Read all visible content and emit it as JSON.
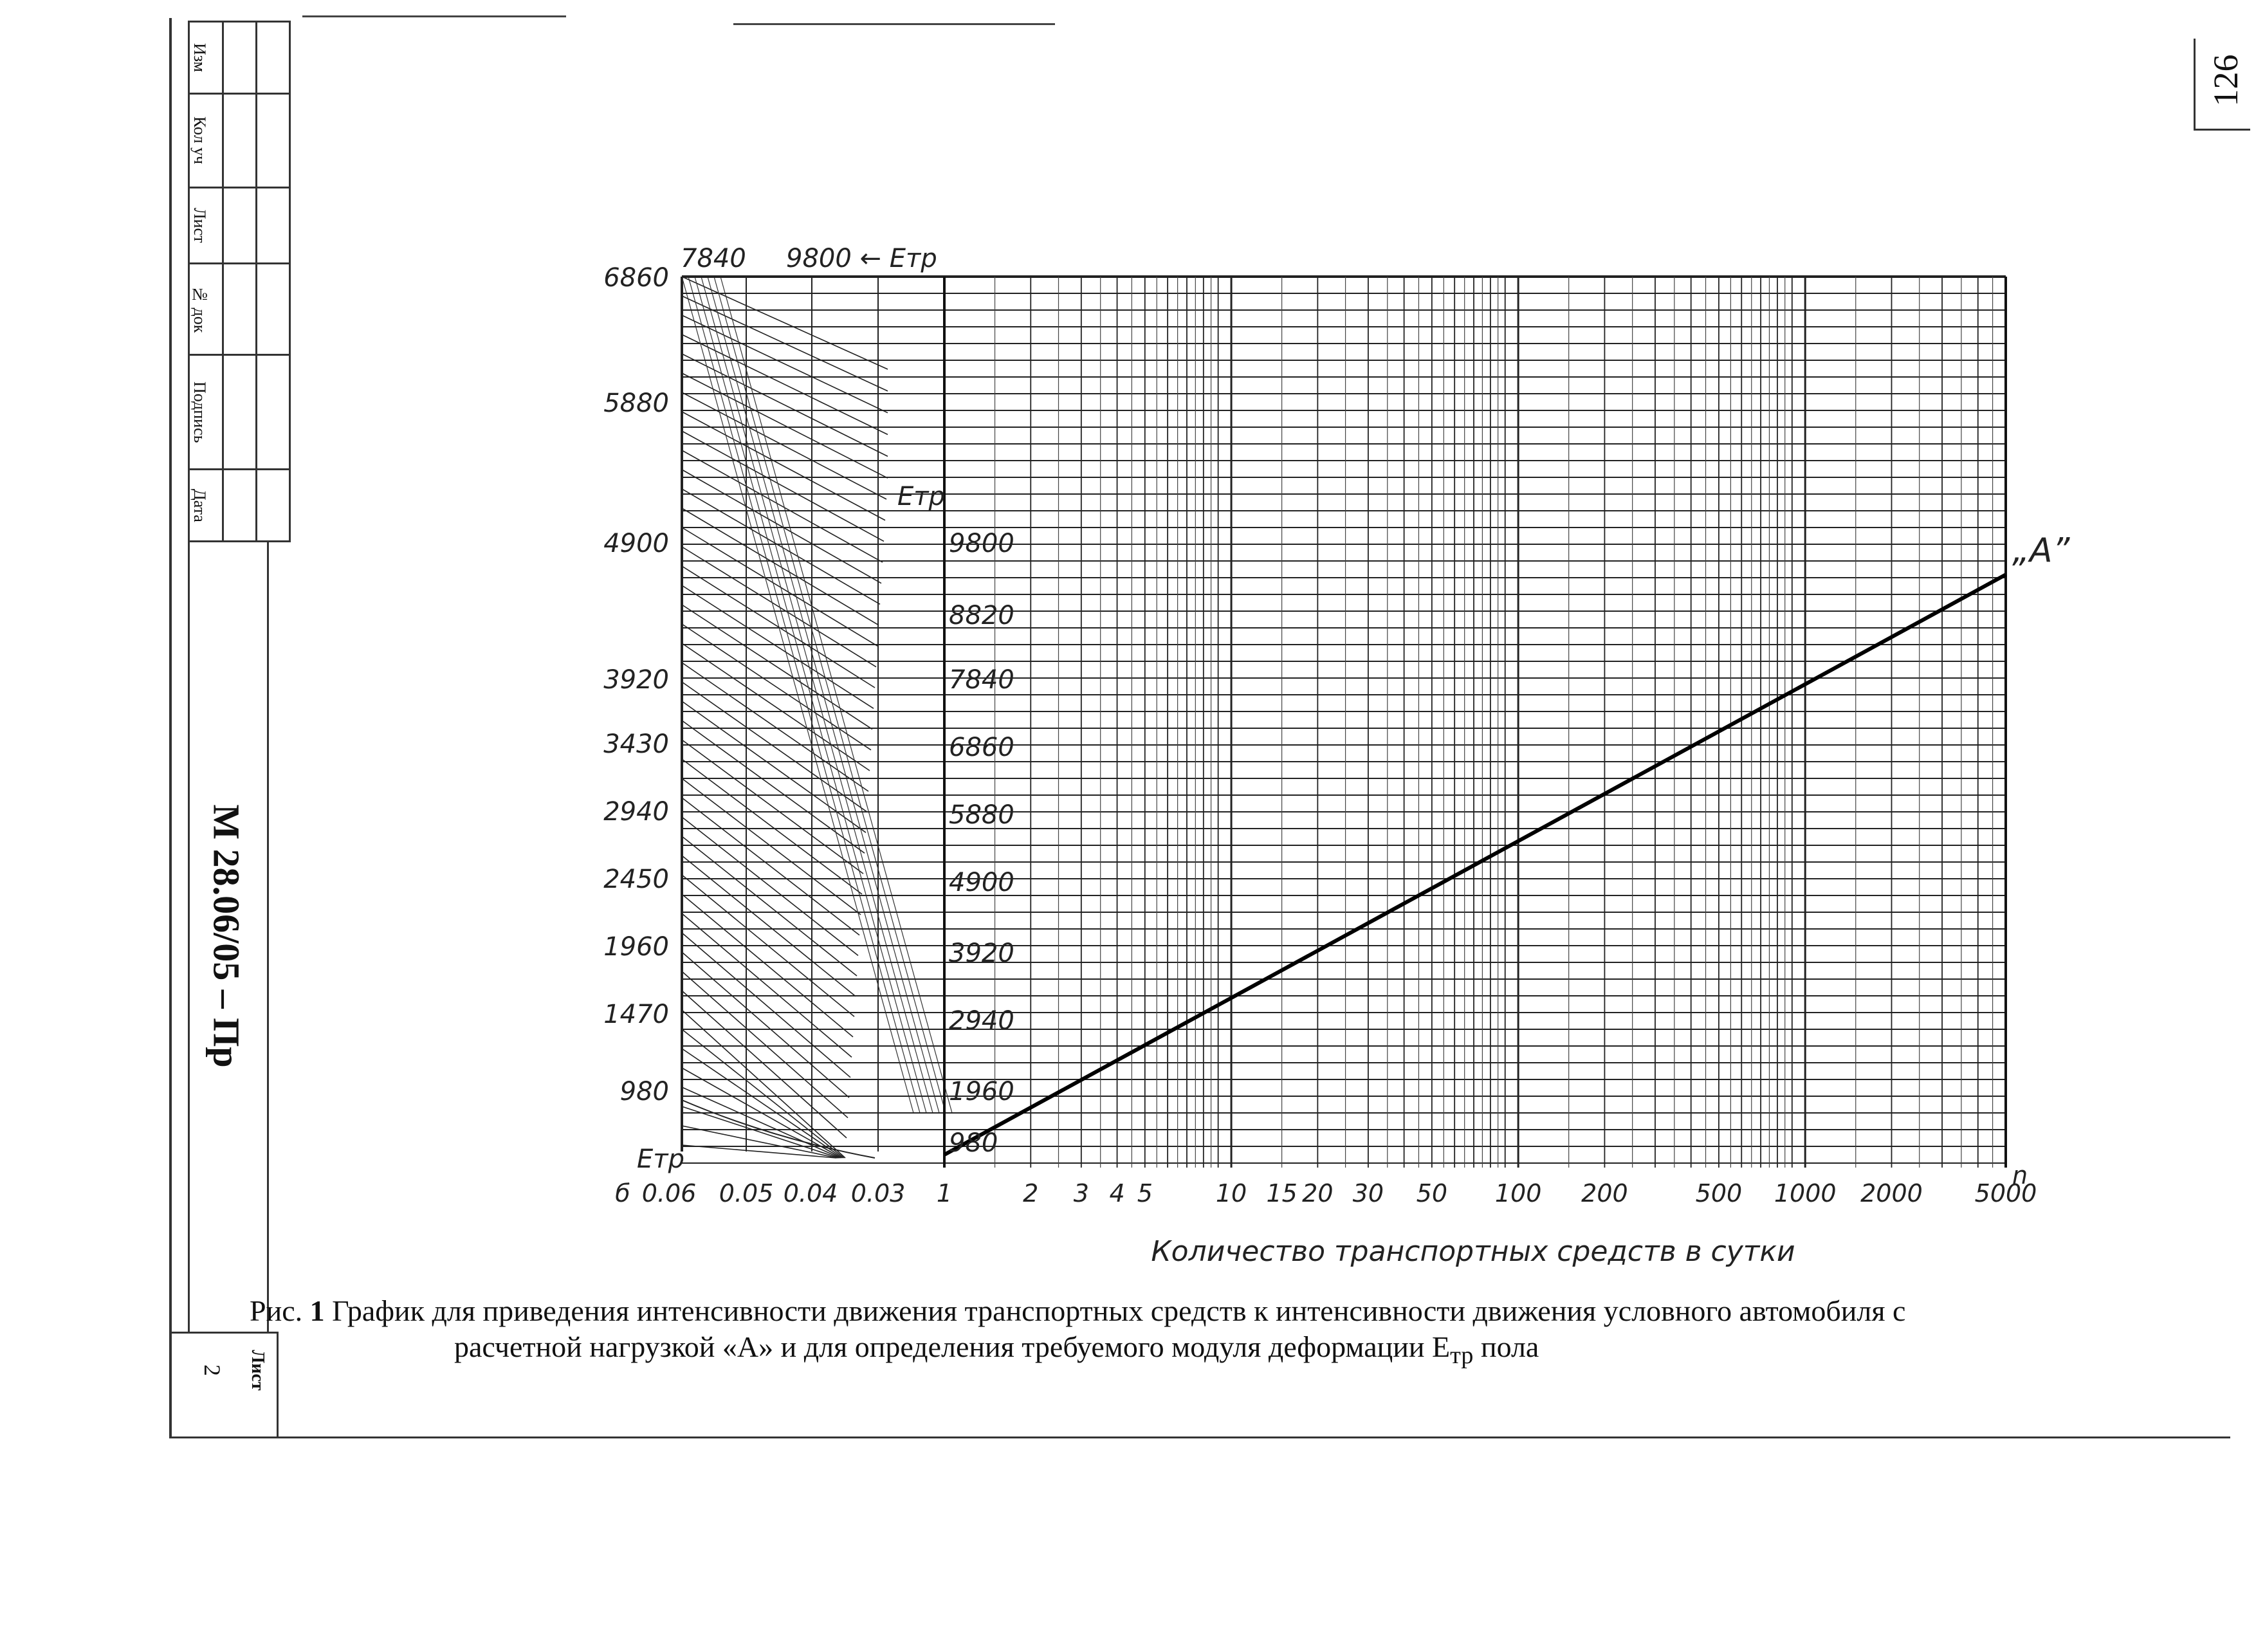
{
  "page": {
    "page_number": "126",
    "doc_code": "М 28.06/05 – Пр",
    "sheet_label": "Лист",
    "sheet_number": "2"
  },
  "stamp": {
    "rows": [
      "Изм",
      "Кол уч",
      "Лист",
      "№ док",
      "Подпись",
      "Дата"
    ]
  },
  "caption": {
    "prefix": "Рис. ",
    "figure_no": "1",
    "line1": " График для приведения интенсивности движения транспортных средств к интенсивности движения условного автомобиля с",
    "line2": "расчетной нагрузкой «А» и для определения требуемого модуля деформации Е",
    "line2_sub": "тр",
    "line2_end": " пола"
  },
  "chart_data": {
    "type": "line",
    "top_labels": [
      "7840",
      "9800 ← Етр"
    ],
    "left_axis_label": "Етр",
    "left_axis_ticks": [
      "6860",
      "5880",
      "4900",
      "3920",
      "3430",
      "2940",
      "2450",
      "1960",
      "1470",
      "980"
    ],
    "mid_axis_label": "Етр",
    "mid_axis_ticks": [
      "9800",
      "8820",
      "7840",
      "6860",
      "5880",
      "4900",
      "3920",
      "2940",
      "1960",
      "980"
    ],
    "left_bottom_ticks": [
      "б",
      "0.06",
      "0.05",
      "0.04",
      "0.03"
    ],
    "x_axis_scale": "log",
    "x_ticks": [
      "1",
      "2",
      "3",
      "4",
      "5",
      "10",
      "15",
      "20",
      "30",
      "50",
      "100",
      "200",
      "500",
      "1000",
      "2000",
      "5000"
    ],
    "x_axis_end_label": "n",
    "xlabel": "Количество транспортных средств в сутки",
    "series": [
      {
        "name": "„А”",
        "x": [
          1,
          5000
        ],
        "y": [
          980,
          8820
        ]
      }
    ],
    "grid": true
  }
}
